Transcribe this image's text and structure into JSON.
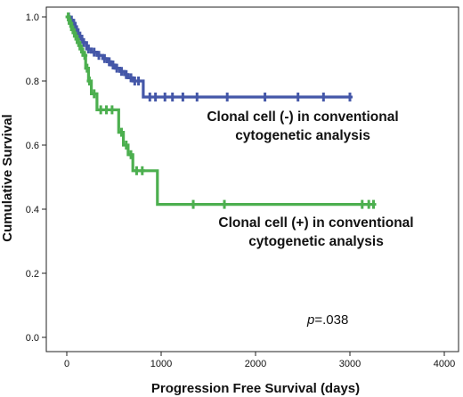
{
  "chart_data": {
    "type": "line",
    "subtype": "kaplan-meier",
    "xlabel": "Progression Free Survival (days)",
    "ylabel": "Cumulative Survival",
    "xlim": [
      0,
      4000
    ],
    "ylim": [
      0,
      1.0
    ],
    "x_ticks": [
      0,
      1000,
      2000,
      3000,
      4000
    ],
    "y_ticks": [
      0.0,
      0.2,
      0.4,
      0.6,
      0.8,
      1.0
    ],
    "x_tick_labels": [
      "0",
      "1000",
      "2000",
      "3000",
      "4000"
    ],
    "y_tick_labels": [
      "0.0",
      "0.2",
      "0.4",
      "0.6",
      "0.8",
      "1.0"
    ],
    "grid": false,
    "series": [
      {
        "color": "#4457a8",
        "steps": [
          [
            0,
            1.0
          ],
          [
            30,
            0.99
          ],
          [
            60,
            0.98
          ],
          [
            90,
            0.96
          ],
          [
            120,
            0.94
          ],
          [
            160,
            0.92
          ],
          [
            210,
            0.9
          ],
          [
            260,
            0.89
          ],
          [
            320,
            0.88
          ],
          [
            380,
            0.87
          ],
          [
            430,
            0.86
          ],
          [
            470,
            0.85
          ],
          [
            510,
            0.84
          ],
          [
            560,
            0.83
          ],
          [
            610,
            0.82
          ],
          [
            650,
            0.81
          ],
          [
            700,
            0.8
          ],
          [
            810,
            0.75
          ],
          [
            3000,
            0.75
          ]
        ],
        "censored": [
          [
            20,
            1.0
          ],
          [
            50,
            0.99
          ],
          [
            75,
            0.98
          ],
          [
            105,
            0.96
          ],
          [
            140,
            0.94
          ],
          [
            180,
            0.92
          ],
          [
            230,
            0.9
          ],
          [
            290,
            0.89
          ],
          [
            340,
            0.88
          ],
          [
            400,
            0.87
          ],
          [
            450,
            0.86
          ],
          [
            490,
            0.85
          ],
          [
            530,
            0.84
          ],
          [
            580,
            0.83
          ],
          [
            630,
            0.82
          ],
          [
            680,
            0.81
          ],
          [
            720,
            0.8
          ],
          [
            760,
            0.8
          ],
          [
            880,
            0.75
          ],
          [
            940,
            0.75
          ],
          [
            1040,
            0.75
          ],
          [
            1120,
            0.75
          ],
          [
            1230,
            0.75
          ],
          [
            1380,
            0.75
          ],
          [
            1700,
            0.75
          ],
          [
            2100,
            0.75
          ],
          [
            2450,
            0.75
          ],
          [
            2720,
            0.75
          ],
          [
            3000,
            0.75
          ]
        ]
      },
      {
        "color": "#4caf4f",
        "steps": [
          [
            0,
            1.0
          ],
          [
            25,
            0.98
          ],
          [
            50,
            0.96
          ],
          [
            80,
            0.94
          ],
          [
            110,
            0.92
          ],
          [
            140,
            0.9
          ],
          [
            170,
            0.88
          ],
          [
            200,
            0.84
          ],
          [
            230,
            0.8
          ],
          [
            260,
            0.76
          ],
          [
            320,
            0.71
          ],
          [
            550,
            0.64
          ],
          [
            600,
            0.6
          ],
          [
            650,
            0.57
          ],
          [
            700,
            0.52
          ],
          [
            960,
            0.415
          ],
          [
            3250,
            0.415
          ]
        ],
        "censored": [
          [
            15,
            1.0
          ],
          [
            40,
            0.98
          ],
          [
            65,
            0.96
          ],
          [
            95,
            0.94
          ],
          [
            125,
            0.92
          ],
          [
            155,
            0.9
          ],
          [
            190,
            0.88
          ],
          [
            215,
            0.84
          ],
          [
            240,
            0.8
          ],
          [
            290,
            0.76
          ],
          [
            360,
            0.71
          ],
          [
            420,
            0.71
          ],
          [
            480,
            0.71
          ],
          [
            580,
            0.64
          ],
          [
            630,
            0.6
          ],
          [
            680,
            0.57
          ],
          [
            740,
            0.52
          ],
          [
            800,
            0.52
          ],
          [
            1340,
            0.415
          ],
          [
            1670,
            0.415
          ],
          [
            3130,
            0.415
          ],
          [
            3200,
            0.415
          ],
          [
            3250,
            0.415
          ]
        ]
      }
    ],
    "annotations": {
      "neg_line1": "Clonal cell (-) in conventional",
      "neg_line2": "cytogenetic analysis",
      "pos_line1": "Clonal cell (+) in conventional",
      "pos_line2": "cytogenetic analysis",
      "p_italic": "p",
      "p_value": "=.038"
    }
  }
}
